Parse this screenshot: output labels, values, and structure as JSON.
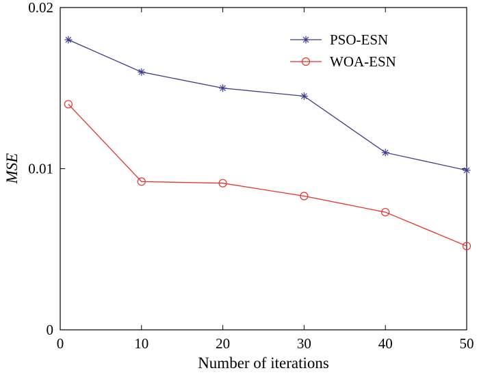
{
  "chart_data": {
    "type": "line",
    "title": "",
    "xlabel": "Number of iterations",
    "ylabel": "MSE",
    "xlim": [
      0,
      50
    ],
    "ylim": [
      0,
      0.02
    ],
    "xticks": [
      0,
      10,
      20,
      30,
      40,
      50
    ],
    "xtick_labels": [
      "0",
      "10",
      "20",
      "30",
      "40",
      "50"
    ],
    "yticks": [
      0,
      0.01,
      0.02
    ],
    "ytick_labels": [
      "0",
      "0.01",
      "0.02"
    ],
    "grid": false,
    "legend_position": "top-right",
    "series": [
      {
        "name": "PSO-ESN",
        "color": "#3b3b8f",
        "marker": "asterisk",
        "x": [
          1,
          10,
          20,
          30,
          40,
          50
        ],
        "y": [
          0.018,
          0.016,
          0.015,
          0.0145,
          0.011,
          0.0099
        ]
      },
      {
        "name": "WOA-ESN",
        "color": "#e8302a",
        "marker": "circle",
        "x": [
          1,
          10,
          20,
          30,
          40,
          50
        ],
        "y": [
          0.014,
          0.0092,
          0.0091,
          0.0083,
          0.0073,
          0.0052
        ]
      }
    ]
  }
}
